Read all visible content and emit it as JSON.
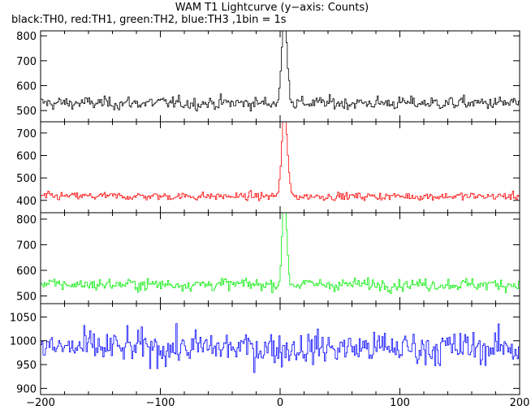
{
  "chart_data": {
    "type": "line",
    "title": "WAM T1 Lightcurve (y−axis: Counts)",
    "subtitle": "black:TH0, red:TH1, green:TH2, blue:TH3 ,1bin = 1s",
    "xlim": [
      -200,
      200
    ],
    "x_ticks": [
      -200,
      -100,
      0,
      100,
      200
    ],
    "x_tick_labels": [
      "−200",
      "−100",
      "0",
      "100",
      "200"
    ],
    "bin_seconds": 1,
    "grid": false,
    "panels": [
      {
        "name": "TH0",
        "color": "#000000",
        "ylim": [
          455,
          820
        ],
        "yticks": [
          500,
          600,
          700,
          800
        ],
        "baseline": 530,
        "noise": 22,
        "peak": {
          "center": 3,
          "amplitude": 285,
          "width": 2.2
        }
      },
      {
        "name": "TH1",
        "color": "#ff0000",
        "ylim": [
          345,
          750
        ],
        "yticks": [
          400,
          500,
          600,
          700
        ],
        "baseline": 418,
        "noise": 15,
        "peak": {
          "center": 3,
          "amplitude": 320,
          "width": 2.2
        }
      },
      {
        "name": "TH2",
        "color": "#00ee00",
        "ylim": [
          470,
          825
        ],
        "yticks": [
          500,
          600,
          700,
          800
        ],
        "baseline": 545,
        "noise": 20,
        "peak": {
          "center": 3,
          "amplitude": 280,
          "width": 1.8
        }
      },
      {
        "name": "TH3",
        "color": "#0000ff",
        "ylim": [
          887,
          1078
        ],
        "yticks": [
          900,
          950,
          1000,
          1050
        ],
        "baseline": 985,
        "noise": 30,
        "peak": null
      }
    ]
  }
}
